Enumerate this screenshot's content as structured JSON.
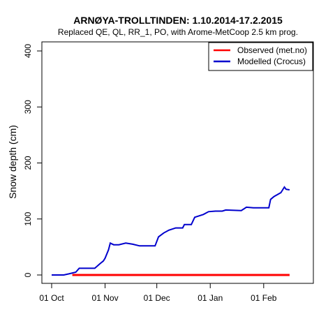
{
  "chart_data": {
    "type": "line",
    "title": "ARNØYA-TROLLTINDEN: 1.10.2014-17.2.2015",
    "subtitle": "Replaced QE, QL, RR_1, PO,  with Arome-MetCoop 2.5 km prog.",
    "xlabel": "",
    "ylabel": "Snow depth (cm)",
    "xlim": [
      "2014-10-01",
      "2015-02-17"
    ],
    "ylim": [
      0,
      400
    ],
    "x_ticks": [
      {
        "date": "2014-10-01",
        "label": "01 Oct"
      },
      {
        "date": "2014-11-01",
        "label": "01 Nov"
      },
      {
        "date": "2014-12-01",
        "label": "01 Dec"
      },
      {
        "date": "2015-01-01",
        "label": "01 Jan"
      },
      {
        "date": "2015-02-01",
        "label": "01 Feb"
      }
    ],
    "y_ticks": [
      0,
      100,
      200,
      300,
      400
    ],
    "grid": false,
    "legend_position": "top-right",
    "series": [
      {
        "name": "Observed (met.no)",
        "color": "#ff0000",
        "points": [
          [
            "2014-10-13",
            0
          ],
          [
            "2015-02-16",
            0
          ]
        ]
      },
      {
        "name": "Modelled (Crocus)",
        "color": "#0000cd",
        "points": [
          [
            "2014-10-01",
            0
          ],
          [
            "2014-10-08",
            0
          ],
          [
            "2014-10-11",
            2
          ],
          [
            "2014-10-15",
            5
          ],
          [
            "2014-10-17",
            12
          ],
          [
            "2014-10-26",
            12
          ],
          [
            "2014-10-29",
            20
          ],
          [
            "2014-10-31",
            25
          ],
          [
            "2014-11-01",
            30
          ],
          [
            "2014-11-03",
            45
          ],
          [
            "2014-11-04",
            57
          ],
          [
            "2014-11-06",
            54
          ],
          [
            "2014-11-09",
            54
          ],
          [
            "2014-11-13",
            57
          ],
          [
            "2014-11-17",
            55
          ],
          [
            "2014-11-21",
            52
          ],
          [
            "2014-11-30",
            52
          ],
          [
            "2014-12-02",
            68
          ],
          [
            "2014-12-05",
            75
          ],
          [
            "2014-12-08",
            80
          ],
          [
            "2014-12-12",
            84
          ],
          [
            "2014-12-16",
            84
          ],
          [
            "2014-12-17",
            90
          ],
          [
            "2014-12-21",
            90
          ],
          [
            "2014-12-23",
            103
          ],
          [
            "2014-12-28",
            108
          ],
          [
            "2014-12-31",
            113
          ],
          [
            "2015-01-04",
            114
          ],
          [
            "2015-01-08",
            114
          ],
          [
            "2015-01-10",
            116
          ],
          [
            "2015-01-19",
            115
          ],
          [
            "2015-01-22",
            121
          ],
          [
            "2015-01-26",
            120
          ],
          [
            "2015-02-04",
            120
          ],
          [
            "2015-02-05",
            135
          ],
          [
            "2015-02-07",
            140
          ],
          [
            "2015-02-11",
            147
          ],
          [
            "2015-02-13",
            157
          ],
          [
            "2015-02-14",
            153
          ],
          [
            "2015-02-16",
            152
          ]
        ]
      }
    ]
  }
}
